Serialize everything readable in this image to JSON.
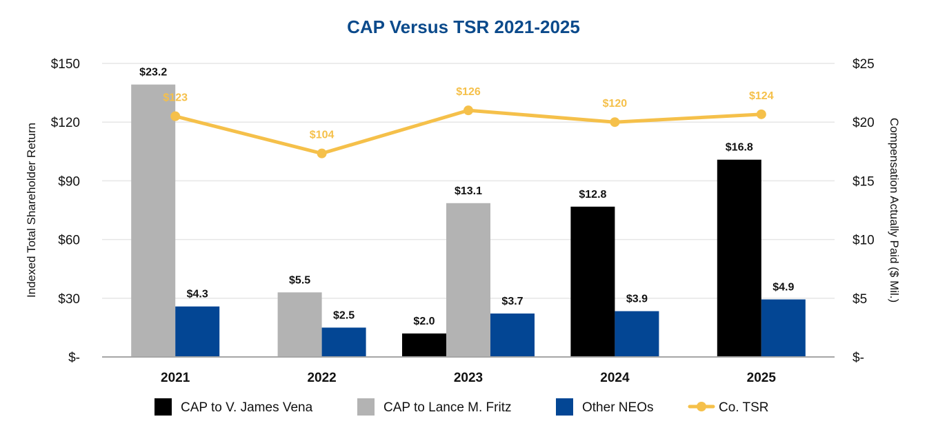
{
  "chart_data": {
    "type": "bar",
    "title": "CAP Versus TSR 2021-2025",
    "categories": [
      "2021",
      "2022",
      "2023",
      "2024",
      "2025"
    ],
    "ylabel_left": "Indexed Total Shareholder Return",
    "ylabel_right": "Compensation Actually Paid ($ Mil.)",
    "ylim_left": [
      0,
      150
    ],
    "ylim_right": [
      0,
      25
    ],
    "yticks_left": [
      "$-",
      "$30",
      "$60",
      "$90",
      "$120",
      "$150"
    ],
    "yticks_right": [
      "$-",
      "$5",
      "$10",
      "$15",
      "$20",
      "$25"
    ],
    "grid": true,
    "legend_position": "bottom",
    "series": [
      {
        "name": "CAP to V. James Vena",
        "type": "bar",
        "axis": "right",
        "color": "#000000",
        "values": [
          null,
          null,
          2.0,
          12.8,
          16.8
        ],
        "labels": [
          null,
          null,
          "$2.0",
          "$12.8",
          "$16.8"
        ]
      },
      {
        "name": "CAP to Lance M. Fritz",
        "type": "bar",
        "axis": "right",
        "color": "#b3b3b3",
        "values": [
          23.2,
          5.5,
          13.1,
          null,
          null
        ],
        "labels": [
          "$23.2",
          "$5.5",
          "$13.1",
          null,
          null
        ]
      },
      {
        "name": "Other NEOs",
        "type": "bar",
        "axis": "right",
        "color": "#034694",
        "values": [
          4.3,
          2.5,
          3.7,
          3.9,
          4.9
        ],
        "labels": [
          "$4.3",
          "$2.5",
          "$3.7",
          "$3.9",
          "$4.9"
        ]
      },
      {
        "name": "Co. TSR",
        "type": "line",
        "axis": "left",
        "color": "#f5c04a",
        "values": [
          123,
          104,
          126,
          120,
          124
        ],
        "labels": [
          "$123",
          "$104",
          "$126",
          "$120",
          "$124"
        ]
      }
    ]
  }
}
